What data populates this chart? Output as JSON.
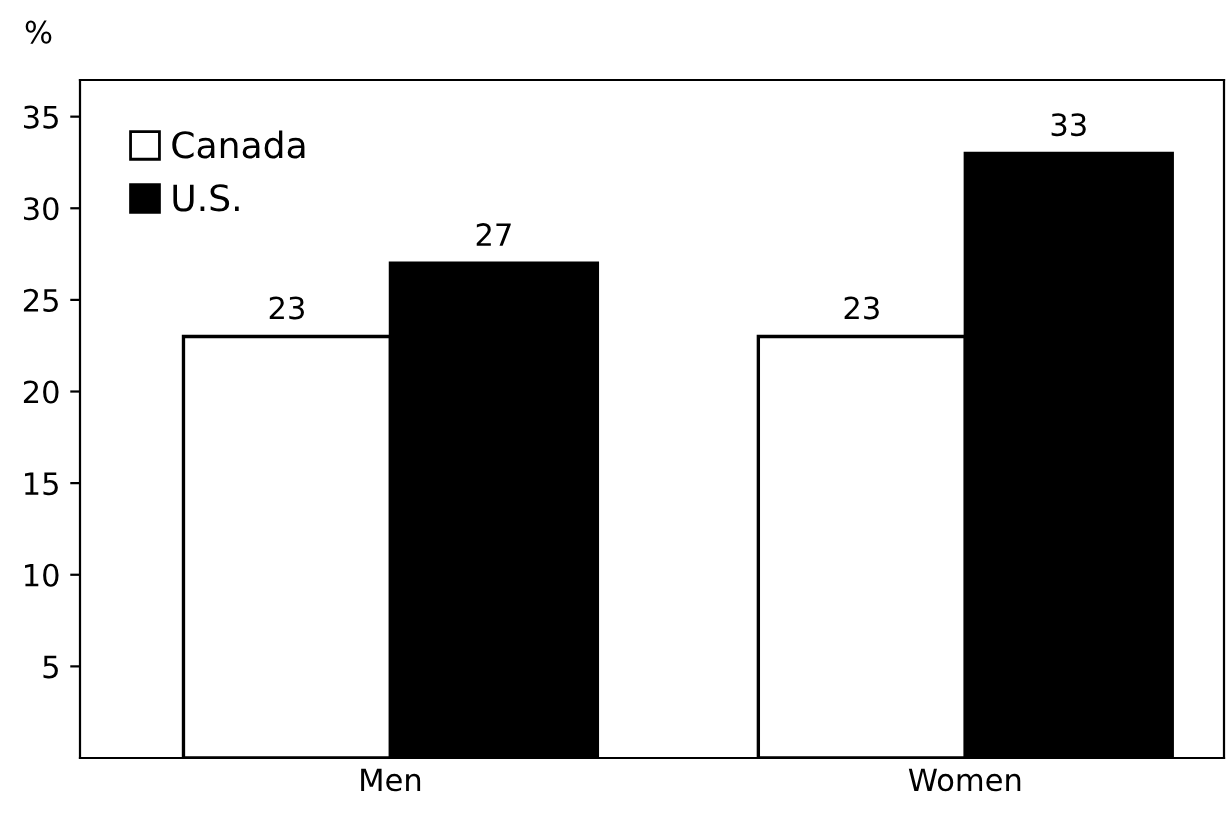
{
  "chart_data": {
    "type": "bar",
    "ylabel": "%",
    "categories": [
      "Men",
      "Women"
    ],
    "series": [
      {
        "name": "Canada",
        "color": "#ffffff",
        "values": [
          23,
          23
        ]
      },
      {
        "name": "U.S.",
        "color": "#000000",
        "values": [
          27,
          33
        ]
      }
    ],
    "ylim": [
      0,
      37
    ],
    "yticks": [
      5,
      10,
      15,
      20,
      25,
      30,
      35
    ],
    "grid": false,
    "legend": "top left",
    "data_labels": true
  }
}
